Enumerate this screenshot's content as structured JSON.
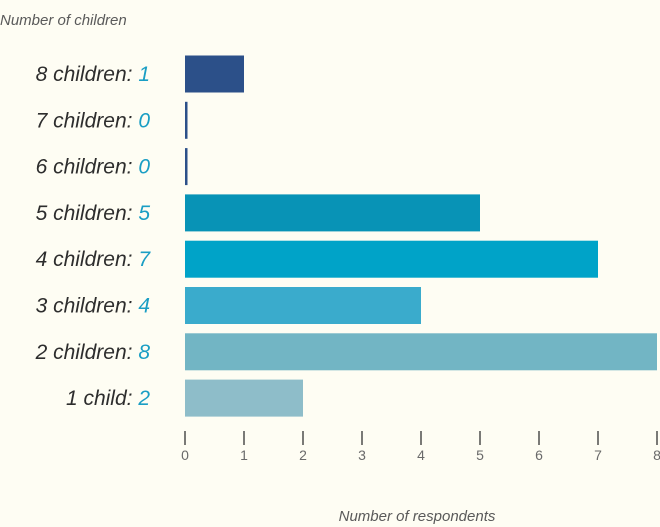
{
  "chart_data": {
    "type": "bar",
    "orientation": "horizontal",
    "title": "",
    "ylabel": "Number of children",
    "xlabel": "Number of respondents",
    "categories": [
      "8 children:",
      "7 children:",
      "6 children:",
      "5 children:",
      "4 children:",
      "3 children:",
      "2 children:",
      "1 child:"
    ],
    "values": [
      1,
      0,
      0,
      5,
      7,
      4,
      8,
      2
    ],
    "bar_colors": [
      "#2c5089",
      "#2c5089",
      "#2c5089",
      "#0893b6",
      "#00a3c8",
      "#3aabcc",
      "#72b5c4",
      "#8ebdc9"
    ],
    "value_label_color": "#1a9ec4",
    "xlim": [
      0,
      8
    ],
    "xticks": [
      0,
      1,
      2,
      3,
      4,
      5,
      6,
      7,
      8
    ],
    "grid": false,
    "legend": "none"
  }
}
